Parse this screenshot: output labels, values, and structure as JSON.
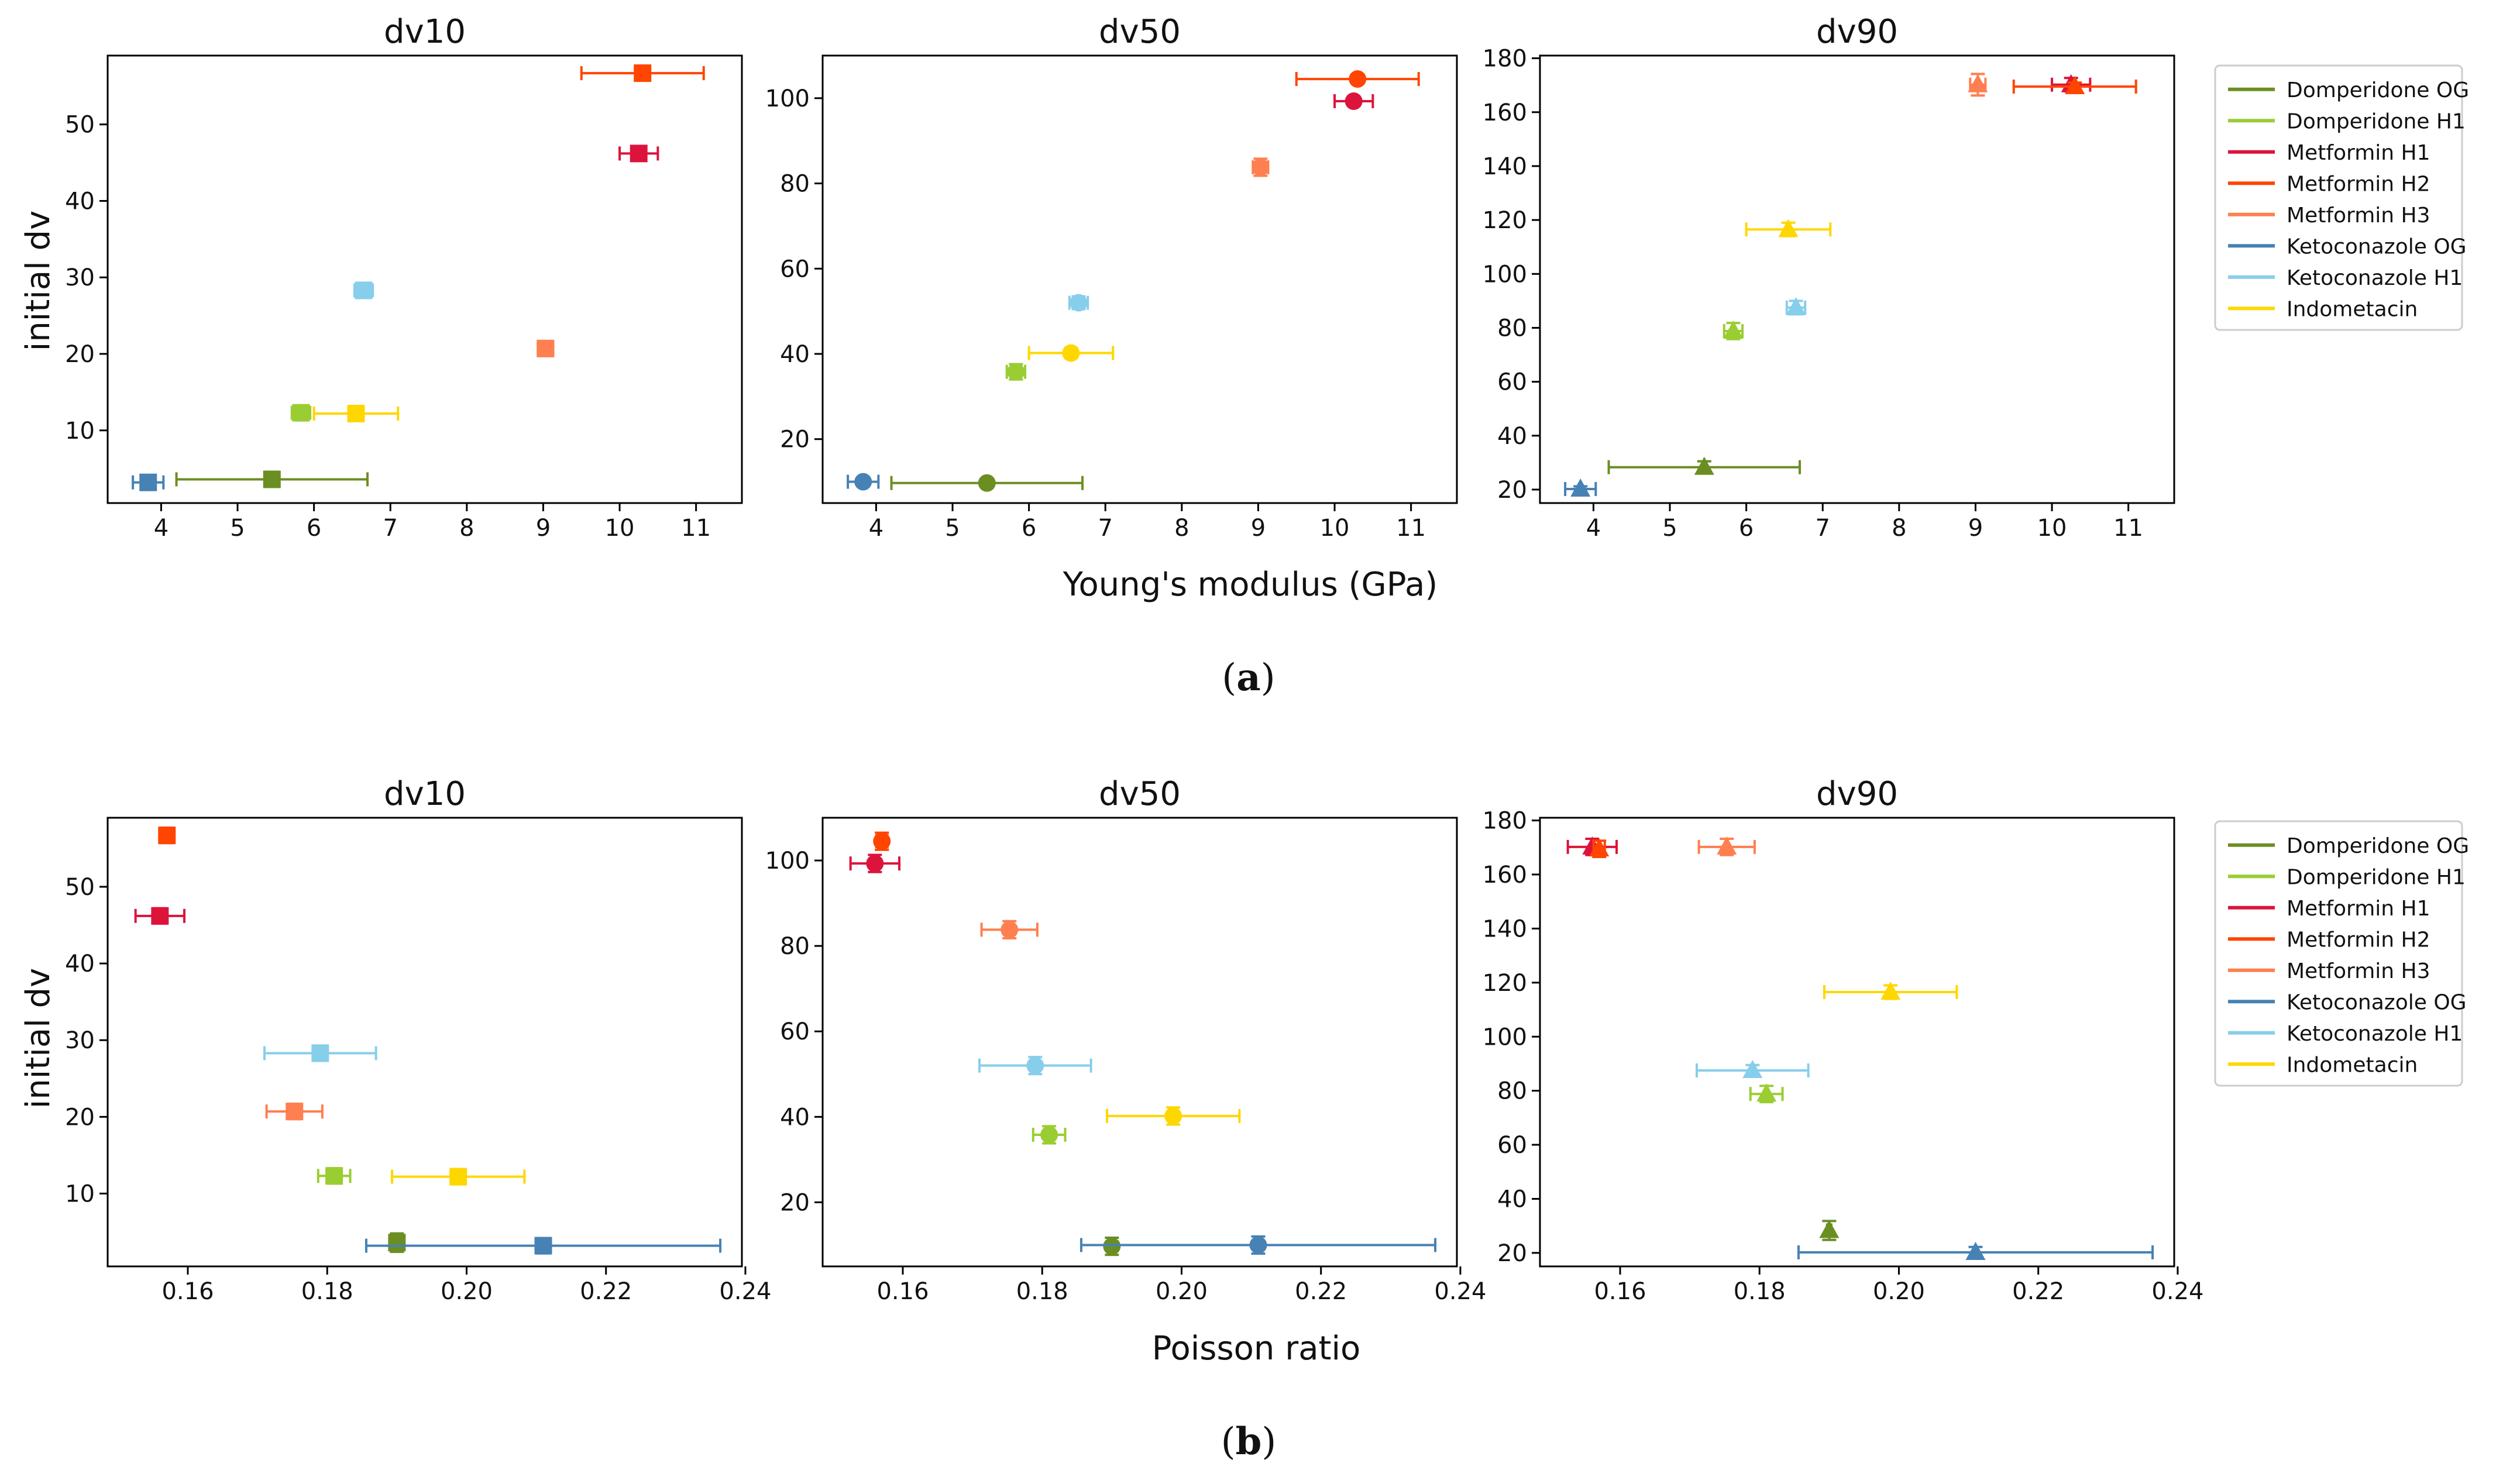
{
  "colors": {
    "Domperidone OG": "#6b8e23",
    "Domperidone H1": "#9acd32",
    "Metformin H1": "#dc143c",
    "Metformin H2": "#ff4500",
    "Metformin H3": "#ff7f50",
    "Ketoconazole OG": "#4682b4",
    "Ketoconazole H1": "#87ceeb",
    "Indometacin": "#ffd700"
  },
  "legend": [
    "Domperidone OG",
    "Domperidone H1",
    "Metformin H1",
    "Metformin H2",
    "Metformin H3",
    "Ketoconazole OG",
    "Ketoconazole H1",
    "Indometacin"
  ],
  "panels": [
    {
      "label_open": "(",
      "label_mid": "a",
      "label_close": ")",
      "xlabel": "Young's modulus (GPa)",
      "ylabel": "initial dv"
    },
    {
      "label_open": "(",
      "label_mid": "b",
      "label_close": ")",
      "xlabel": "Poisson ratio",
      "ylabel": "initial dv"
    }
  ],
  "chart_data": [
    {
      "type": "scatter",
      "title": "dv10",
      "xlabel": "Young's modulus (GPa)",
      "ylabel": "initial dv",
      "xlim": [
        3.3,
        11.6
      ],
      "ylim": [
        0.5,
        59
      ],
      "xticks": [
        4,
        5,
        6,
        7,
        8,
        9,
        10,
        11
      ],
      "yticks": [
        10,
        20,
        30,
        40,
        50
      ],
      "xtick_labels": [
        "4",
        "5",
        "6",
        "7",
        "8",
        "9",
        "10",
        "11"
      ],
      "ytick_labels": [
        "10",
        "20",
        "30",
        "40",
        "50"
      ],
      "marker": "square",
      "series": [
        {
          "name": "Domperidone OG",
          "x": 5.45,
          "xerr": 1.25,
          "y": 3.6,
          "yerr": 0.4
        },
        {
          "name": "Domperidone H1",
          "x": 5.83,
          "xerr": 0.12,
          "y": 12.3,
          "yerr": 0.7
        },
        {
          "name": "Metformin H1",
          "x": 10.25,
          "xerr": 0.25,
          "y": 46.2,
          "yerr": 0.7
        },
        {
          "name": "Metformin H2",
          "x": 10.3,
          "xerr": 0.8,
          "y": 56.7,
          "yerr": 0.7
        },
        {
          "name": "Metformin H3",
          "x": 9.03,
          "xerr": 0.1,
          "y": 20.7,
          "yerr": 0.9
        },
        {
          "name": "Ketoconazole OG",
          "x": 3.83,
          "xerr": 0.2,
          "y": 3.2,
          "yerr": 0.5
        },
        {
          "name": "Ketoconazole H1",
          "x": 6.65,
          "xerr": 0.12,
          "y": 28.3,
          "yerr": 1.0
        },
        {
          "name": "Indometacin",
          "x": 6.55,
          "xerr": 0.55,
          "y": 12.2,
          "yerr": 0.6
        }
      ]
    },
    {
      "type": "scatter",
      "title": "dv50",
      "xlabel": "Young's modulus (GPa)",
      "ylabel": "initial dv",
      "xlim": [
        3.3,
        11.6
      ],
      "ylim": [
        5,
        110
      ],
      "xticks": [
        4,
        5,
        6,
        7,
        8,
        9,
        10,
        11
      ],
      "yticks": [
        20,
        40,
        60,
        80,
        100
      ],
      "xtick_labels": [
        "4",
        "5",
        "6",
        "7",
        "8",
        "9",
        "10",
        "11"
      ],
      "ytick_labels": [
        "20",
        "40",
        "60",
        "80",
        "100"
      ],
      "marker": "circle",
      "series": [
        {
          "name": "Domperidone OG",
          "x": 5.45,
          "xerr": 1.25,
          "y": 9.7,
          "yerr": 0.5
        },
        {
          "name": "Domperidone H1",
          "x": 5.83,
          "xerr": 0.12,
          "y": 35.8,
          "yerr": 1.8
        },
        {
          "name": "Metformin H1",
          "x": 10.25,
          "xerr": 0.25,
          "y": 99.3,
          "yerr": 1.0
        },
        {
          "name": "Metformin H2",
          "x": 10.3,
          "xerr": 0.8,
          "y": 104.5,
          "yerr": 1.0
        },
        {
          "name": "Metformin H3",
          "x": 9.03,
          "xerr": 0.1,
          "y": 83.8,
          "yerr": 2.0
        },
        {
          "name": "Ketoconazole OG",
          "x": 3.83,
          "xerr": 0.2,
          "y": 10.0,
          "yerr": 0.5
        },
        {
          "name": "Ketoconazole H1",
          "x": 6.65,
          "xerr": 0.12,
          "y": 52.0,
          "yerr": 1.5
        },
        {
          "name": "Indometacin",
          "x": 6.55,
          "xerr": 0.55,
          "y": 40.2,
          "yerr": 1.2
        }
      ]
    },
    {
      "type": "scatter",
      "title": "dv90",
      "xlabel": "Young's modulus (GPa)",
      "ylabel": "initial dv",
      "xlim": [
        3.3,
        11.6
      ],
      "ylim": [
        15,
        181
      ],
      "xticks": [
        4,
        5,
        6,
        7,
        8,
        9,
        10,
        11
      ],
      "yticks": [
        20,
        40,
        60,
        80,
        100,
        120,
        140,
        160,
        180
      ],
      "xtick_labels": [
        "4",
        "5",
        "6",
        "7",
        "8",
        "9",
        "10",
        "11"
      ],
      "ytick_labels": [
        "20",
        "40",
        "60",
        "80",
        "100",
        "120",
        "140",
        "160",
        "180"
      ],
      "marker": "triangle",
      "series": [
        {
          "name": "Domperidone OG",
          "x": 5.45,
          "xerr": 1.25,
          "y": 28.3,
          "yerr": 2.2
        },
        {
          "name": "Domperidone H1",
          "x": 5.83,
          "xerr": 0.12,
          "y": 78.8,
          "yerr": 3.0
        },
        {
          "name": "Metformin H1",
          "x": 10.25,
          "xerr": 0.25,
          "y": 170.2,
          "yerr": 2.5
        },
        {
          "name": "Metformin H2",
          "x": 10.3,
          "xerr": 0.8,
          "y": 169.5,
          "yerr": 1.5
        },
        {
          "name": "Metformin H3",
          "x": 9.03,
          "xerr": 0.1,
          "y": 170.2,
          "yerr": 4.0
        },
        {
          "name": "Ketoconazole OG",
          "x": 3.83,
          "xerr": 0.2,
          "y": 20.2,
          "yerr": 1.0
        },
        {
          "name": "Ketoconazole H1",
          "x": 6.65,
          "xerr": 0.12,
          "y": 87.5,
          "yerr": 2.5
        },
        {
          "name": "Indometacin",
          "x": 6.55,
          "xerr": 0.55,
          "y": 116.5,
          "yerr": 2.5
        }
      ]
    },
    {
      "type": "scatter",
      "title": "dv10",
      "xlabel": "Poisson ratio",
      "ylabel": "initial dv",
      "xlim": [
        0.1485,
        0.2395
      ],
      "ylim": [
        0.5,
        59
      ],
      "xticks": [
        0.16,
        0.18,
        0.2,
        0.22,
        0.24
      ],
      "yticks": [
        10,
        20,
        30,
        40,
        50
      ],
      "xtick_labels": [
        "0.16",
        "0.18",
        "0.20",
        "0.22",
        "0.24"
      ],
      "ytick_labels": [
        "10",
        "20",
        "30",
        "40",
        "50"
      ],
      "marker": "square",
      "series": [
        {
          "name": "Domperidone OG",
          "x": 0.19,
          "xerr": 0.0003,
          "y": 3.6,
          "yerr": 1.2
        },
        {
          "name": "Domperidone H1",
          "x": 0.181,
          "xerr": 0.0023,
          "y": 12.3,
          "yerr": 1.0
        },
        {
          "name": "Metformin H1",
          "x": 0.156,
          "xerr": 0.0035,
          "y": 46.2,
          "yerr": 1.0
        },
        {
          "name": "Metformin H2",
          "x": 0.157,
          "xerr": 0.0008,
          "y": 56.7,
          "yerr": 1.0
        },
        {
          "name": "Metformin H3",
          "x": 0.1753,
          "xerr": 0.004,
          "y": 20.7,
          "yerr": 1.0
        },
        {
          "name": "Ketoconazole OG",
          "x": 0.211,
          "xerr": 0.0254,
          "y": 3.2,
          "yerr": 1.0
        },
        {
          "name": "Ketoconazole H1",
          "x": 0.179,
          "xerr": 0.008,
          "y": 28.3,
          "yerr": 1.0
        },
        {
          "name": "Indometacin",
          "x": 0.1988,
          "xerr": 0.0095,
          "y": 12.2,
          "yerr": 1.0
        }
      ]
    },
    {
      "type": "scatter",
      "title": "dv50",
      "xlabel": "Poisson ratio",
      "ylabel": "initial dv",
      "xlim": [
        0.1485,
        0.2395
      ],
      "ylim": [
        5,
        110
      ],
      "xticks": [
        0.16,
        0.18,
        0.2,
        0.22,
        0.24
      ],
      "yticks": [
        20,
        40,
        60,
        80,
        100
      ],
      "xtick_labels": [
        "0.16",
        "0.18",
        "0.20",
        "0.22",
        "0.24"
      ],
      "ytick_labels": [
        "20",
        "40",
        "60",
        "80",
        "100"
      ],
      "marker": "circle",
      "series": [
        {
          "name": "Domperidone OG",
          "x": 0.19,
          "xerr": 0.0003,
          "y": 9.7,
          "yerr": 2.0
        },
        {
          "name": "Domperidone H1",
          "x": 0.181,
          "xerr": 0.0023,
          "y": 35.8,
          "yerr": 2.0
        },
        {
          "name": "Metformin H1",
          "x": 0.156,
          "xerr": 0.0035,
          "y": 99.3,
          "yerr": 2.0
        },
        {
          "name": "Metformin H2",
          "x": 0.157,
          "xerr": 0.0008,
          "y": 104.5,
          "yerr": 2.0
        },
        {
          "name": "Metformin H3",
          "x": 0.1753,
          "xerr": 0.004,
          "y": 83.8,
          "yerr": 2.0
        },
        {
          "name": "Ketoconazole OG",
          "x": 0.211,
          "xerr": 0.0254,
          "y": 10.0,
          "yerr": 2.0
        },
        {
          "name": "Ketoconazole H1",
          "x": 0.179,
          "xerr": 0.008,
          "y": 52.0,
          "yerr": 2.0
        },
        {
          "name": "Indometacin",
          "x": 0.1988,
          "xerr": 0.0095,
          "y": 40.2,
          "yerr": 2.0
        }
      ]
    },
    {
      "type": "scatter",
      "title": "dv90",
      "xlabel": "Poisson ratio",
      "ylabel": "initial dv",
      "xlim": [
        0.1485,
        0.2395
      ],
      "ylim": [
        15,
        181
      ],
      "xticks": [
        0.16,
        0.18,
        0.2,
        0.22,
        0.24
      ],
      "yticks": [
        20,
        40,
        60,
        80,
        100,
        120,
        140,
        160,
        180
      ],
      "xtick_labels": [
        "0.16",
        "0.18",
        "0.20",
        "0.22",
        "0.24"
      ],
      "ytick_labels": [
        "20",
        "40",
        "60",
        "80",
        "100",
        "120",
        "140",
        "160",
        "180"
      ],
      "marker": "triangle",
      "series": [
        {
          "name": "Domperidone OG",
          "x": 0.19,
          "xerr": 0.0003,
          "y": 28.3,
          "yerr": 3.5
        },
        {
          "name": "Domperidone H1",
          "x": 0.181,
          "xerr": 0.0023,
          "y": 78.8,
          "yerr": 3.0
        },
        {
          "name": "Metformin H1",
          "x": 0.156,
          "xerr": 0.0035,
          "y": 170.2,
          "yerr": 3.0
        },
        {
          "name": "Metformin H2",
          "x": 0.157,
          "xerr": 0.0008,
          "y": 169.5,
          "yerr": 3.0
        },
        {
          "name": "Metformin H3",
          "x": 0.1753,
          "xerr": 0.004,
          "y": 170.2,
          "yerr": 3.0
        },
        {
          "name": "Ketoconazole OG",
          "x": 0.211,
          "xerr": 0.0254,
          "y": 20.2,
          "yerr": 2.0
        },
        {
          "name": "Ketoconazole H1",
          "x": 0.179,
          "xerr": 0.008,
          "y": 87.5,
          "yerr": 2.0
        },
        {
          "name": "Indometacin",
          "x": 0.1988,
          "xerr": 0.0095,
          "y": 116.5,
          "yerr": 2.5
        }
      ]
    }
  ]
}
